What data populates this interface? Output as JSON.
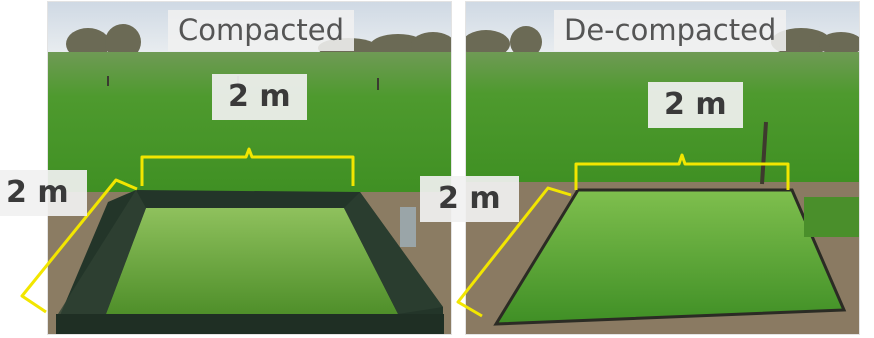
{
  "panels": [
    {
      "id": "left",
      "label": "Compacted"
    },
    {
      "id": "right",
      "label": "De-compacted"
    }
  ],
  "dimensions": {
    "left_top": "2 m",
    "left_side": "2 m",
    "right_top": "2 m",
    "right_side": "2 m"
  },
  "colors": {
    "bracket": "#f2e600",
    "grass_field": "#4f9a2f",
    "sky": "#dde6ee",
    "soil": "#8a7a62",
    "frame": "#24352a"
  }
}
